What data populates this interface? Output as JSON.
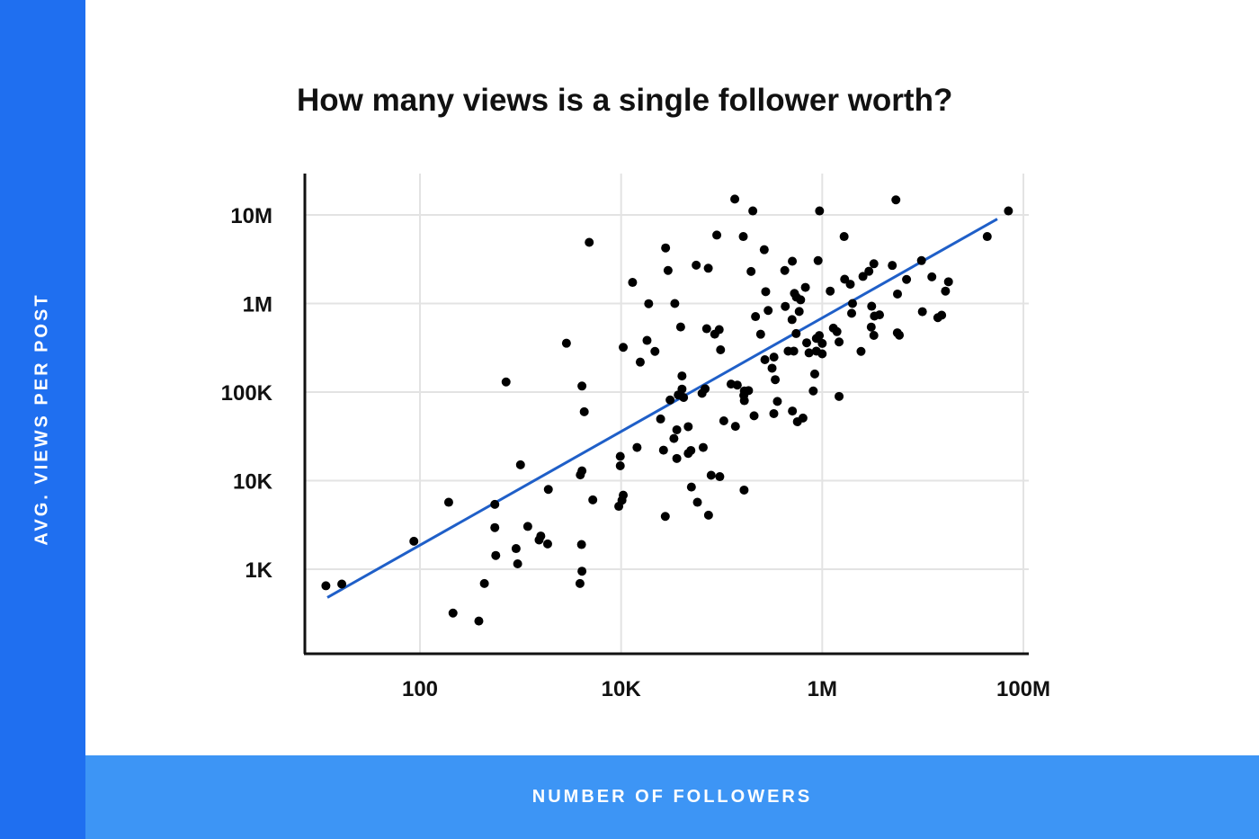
{
  "chart_data": {
    "type": "scatter",
    "title": "How many views is a single follower worth?",
    "xlabel": "NUMBER OF FOLLOWERS",
    "ylabel": "AVG. VIEWS PER POST",
    "x_scale": "log",
    "y_scale": "log",
    "xlim": [
      10,
      100000000
    ],
    "ylim": [
      100,
      20000000
    ],
    "x_ticks": [
      {
        "value": 100,
        "label": "100"
      },
      {
        "value": 10000,
        "label": "10K"
      },
      {
        "value": 1000000,
        "label": "1M"
      },
      {
        "value": 100000000,
        "label": "100M"
      }
    ],
    "y_ticks": [
      {
        "value": 1000,
        "label": "1K"
      },
      {
        "value": 10000,
        "label": "10K"
      },
      {
        "value": 100000,
        "label": "100K"
      },
      {
        "value": 1000000,
        "label": "1M"
      },
      {
        "value": 10000000,
        "label": "10M"
      }
    ],
    "grid": true,
    "point_color": "#000000",
    "trendline_color": "#1f5fc8",
    "trendline": {
      "x": [
        12,
        55000000
      ],
      "y": [
        480,
        9000000
      ]
    },
    "points": [
      {
        "x": 11.6,
        "y": 650
      },
      {
        "x": 16.7,
        "y": 680
      },
      {
        "x": 87,
        "y": 2070
      },
      {
        "x": 193,
        "y": 5700
      },
      {
        "x": 213,
        "y": 320
      },
      {
        "x": 385,
        "y": 260
      },
      {
        "x": 437,
        "y": 690
      },
      {
        "x": 555,
        "y": 5400
      },
      {
        "x": 555,
        "y": 2950
      },
      {
        "x": 567,
        "y": 1430
      },
      {
        "x": 718,
        "y": 130000
      },
      {
        "x": 903,
        "y": 1710
      },
      {
        "x": 936,
        "y": 1150
      },
      {
        "x": 999,
        "y": 15100
      },
      {
        "x": 1180,
        "y": 3040
      },
      {
        "x": 1530,
        "y": 2140
      },
      {
        "x": 1590,
        "y": 2370
      },
      {
        "x": 1860,
        "y": 1930
      },
      {
        "x": 1890,
        "y": 7960
      },
      {
        "x": 2860,
        "y": 356000
      },
      {
        "x": 3900,
        "y": 690
      },
      {
        "x": 4080,
        "y": 117000
      },
      {
        "x": 4040,
        "y": 1900
      },
      {
        "x": 3930,
        "y": 11600
      },
      {
        "x": 4080,
        "y": 12900
      },
      {
        "x": 4080,
        "y": 950
      },
      {
        "x": 4300,
        "y": 60000
      },
      {
        "x": 4820,
        "y": 4900000
      },
      {
        "x": 5230,
        "y": 6070
      },
      {
        "x": 9480,
        "y": 5130
      },
      {
        "x": 9810,
        "y": 14700
      },
      {
        "x": 9810,
        "y": 18800
      },
      {
        "x": 10500,
        "y": 6860
      },
      {
        "x": 10200,
        "y": 6000
      },
      {
        "x": 10500,
        "y": 320000
      },
      {
        "x": 13000,
        "y": 1730000
      },
      {
        "x": 14400,
        "y": 23700
      },
      {
        "x": 15500,
        "y": 218000
      },
      {
        "x": 18100,
        "y": 383000
      },
      {
        "x": 18800,
        "y": 995000
      },
      {
        "x": 21700,
        "y": 288000
      },
      {
        "x": 24700,
        "y": 49700
      },
      {
        "x": 26400,
        "y": 22100
      },
      {
        "x": 27700,
        "y": 4240000
      },
      {
        "x": 29300,
        "y": 2360000
      },
      {
        "x": 27500,
        "y": 3950
      },
      {
        "x": 33500,
        "y": 29900
      },
      {
        "x": 35800,
        "y": 37500
      },
      {
        "x": 30700,
        "y": 81500
      },
      {
        "x": 37000,
        "y": 92800
      },
      {
        "x": 34200,
        "y": 1000000
      },
      {
        "x": 35800,
        "y": 17800
      },
      {
        "x": 39100,
        "y": 543000
      },
      {
        "x": 40300,
        "y": 152000
      },
      {
        "x": 40300,
        "y": 108000
      },
      {
        "x": 41800,
        "y": 86900
      },
      {
        "x": 46500,
        "y": 20300
      },
      {
        "x": 46500,
        "y": 40700
      },
      {
        "x": 50000,
        "y": 8470
      },
      {
        "x": 49400,
        "y": 21900
      },
      {
        "x": 55800,
        "y": 2710000
      },
      {
        "x": 57400,
        "y": 5700
      },
      {
        "x": 63800,
        "y": 96800
      },
      {
        "x": 65500,
        "y": 23700
      },
      {
        "x": 68400,
        "y": 109000
      },
      {
        "x": 70900,
        "y": 519000
      },
      {
        "x": 73600,
        "y": 2500000
      },
      {
        "x": 74000,
        "y": 4080
      },
      {
        "x": 78600,
        "y": 11500
      },
      {
        "x": 85300,
        "y": 451000
      },
      {
        "x": 89400,
        "y": 5920000
      },
      {
        "x": 94500,
        "y": 507000
      },
      {
        "x": 97500,
        "y": 300000
      },
      {
        "x": 95800,
        "y": 11100
      },
      {
        "x": 105000,
        "y": 47300
      },
      {
        "x": 124000,
        "y": 123000
      },
      {
        "x": 135000,
        "y": 15100000
      },
      {
        "x": 137000,
        "y": 41000
      },
      {
        "x": 143000,
        "y": 120000
      },
      {
        "x": 166000,
        "y": 91600
      },
      {
        "x": 164000,
        "y": 5700000
      },
      {
        "x": 168000,
        "y": 103000
      },
      {
        "x": 168000,
        "y": 80000
      },
      {
        "x": 167000,
        "y": 7830
      },
      {
        "x": 185000,
        "y": 104000
      },
      {
        "x": 196000,
        "y": 2300000
      },
      {
        "x": 204000,
        "y": 11100000
      },
      {
        "x": 210000,
        "y": 54000
      },
      {
        "x": 217000,
        "y": 712000
      },
      {
        "x": 244000,
        "y": 450000
      },
      {
        "x": 269000,
        "y": 232000
      },
      {
        "x": 265000,
        "y": 4050000
      },
      {
        "x": 274000,
        "y": 1360000
      },
      {
        "x": 290000,
        "y": 834000
      },
      {
        "x": 317000,
        "y": 186000
      },
      {
        "x": 330000,
        "y": 57100
      },
      {
        "x": 331000,
        "y": 248000
      },
      {
        "x": 341000,
        "y": 138000
      },
      {
        "x": 358000,
        "y": 78500
      },
      {
        "x": 424000,
        "y": 2360000
      },
      {
        "x": 429000,
        "y": 928000
      },
      {
        "x": 458000,
        "y": 290000
      },
      {
        "x": 504000,
        "y": 3000000
      },
      {
        "x": 501000,
        "y": 658000
      },
      {
        "x": 529000,
        "y": 1300000
      },
      {
        "x": 505000,
        "y": 61100
      },
      {
        "x": 521000,
        "y": 290000
      },
      {
        "x": 550000,
        "y": 458000
      },
      {
        "x": 553000,
        "y": 1180000
      },
      {
        "x": 566000,
        "y": 46300
      },
      {
        "x": 590000,
        "y": 813000
      },
      {
        "x": 610000,
        "y": 1100000
      },
      {
        "x": 643000,
        "y": 50900
      },
      {
        "x": 680000,
        "y": 1520000
      },
      {
        "x": 700000,
        "y": 360000
      },
      {
        "x": 739000,
        "y": 277000
      },
      {
        "x": 814000,
        "y": 103000
      },
      {
        "x": 842000,
        "y": 160000
      },
      {
        "x": 874000,
        "y": 403000
      },
      {
        "x": 874000,
        "y": 290000
      },
      {
        "x": 909000,
        "y": 3050000
      },
      {
        "x": 940000,
        "y": 11100000
      },
      {
        "x": 935000,
        "y": 435000
      },
      {
        "x": 999000,
        "y": 270000
      },
      {
        "x": 1000000,
        "y": 354000
      },
      {
        "x": 1200000,
        "y": 1380000
      },
      {
        "x": 1290000,
        "y": 527000
      },
      {
        "x": 1400000,
        "y": 481000
      },
      {
        "x": 1470000,
        "y": 368000
      },
      {
        "x": 1470000,
        "y": 89300
      },
      {
        "x": 1670000,
        "y": 1880000
      },
      {
        "x": 1650000,
        "y": 5700000
      },
      {
        "x": 1900000,
        "y": 1650000
      },
      {
        "x": 1960000,
        "y": 776000
      },
      {
        "x": 2000000,
        "y": 1000000
      },
      {
        "x": 2430000,
        "y": 288000
      },
      {
        "x": 2540000,
        "y": 2020000
      },
      {
        "x": 2910000,
        "y": 2310000
      },
      {
        "x": 3070000,
        "y": 542000
      },
      {
        "x": 3100000,
        "y": 931000
      },
      {
        "x": 3260000,
        "y": 2810000
      },
      {
        "x": 3300000,
        "y": 721000
      },
      {
        "x": 3260000,
        "y": 436000
      },
      {
        "x": 3710000,
        "y": 744000
      },
      {
        "x": 5400000,
        "y": 14800000
      },
      {
        "x": 5580000,
        "y": 467000
      },
      {
        "x": 5840000,
        "y": 439000
      },
      {
        "x": 4970000,
        "y": 2690000
      },
      {
        "x": 6890000,
        "y": 1870000
      },
      {
        "x": 5600000,
        "y": 1280000
      },
      {
        "x": 9700000,
        "y": 3050000
      },
      {
        "x": 9900000,
        "y": 809000
      },
      {
        "x": 12300000,
        "y": 2000000
      },
      {
        "x": 14100000,
        "y": 692000
      },
      {
        "x": 15400000,
        "y": 738000
      },
      {
        "x": 16800000,
        "y": 1380000
      },
      {
        "x": 18000000,
        "y": 1760000
      },
      {
        "x": 43700000,
        "y": 5700000
      },
      {
        "x": 71000000,
        "y": 11100000
      }
    ]
  }
}
